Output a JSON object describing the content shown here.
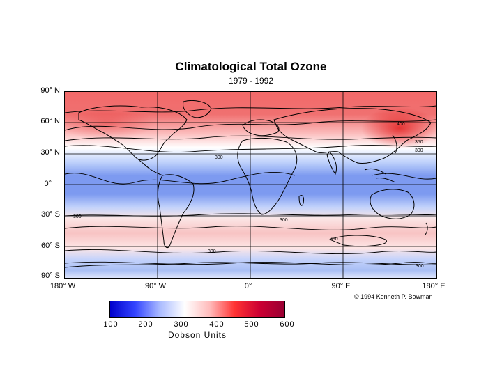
{
  "title": "Climatological Total Ozone",
  "subtitle": "1979 - 1992",
  "latitude_labels": [
    "90° N",
    "60° N",
    "30° N",
    "0°",
    "30° S",
    "60° S",
    "90° S"
  ],
  "longitude_labels": [
    "180° W",
    "90° W",
    "0°",
    "90° E",
    "180° E"
  ],
  "contour_labels": [
    "300",
    "300",
    "300",
    "350",
    "300",
    "350",
    "300",
    "300",
    "400"
  ],
  "credit": "© 1994 Kenneth P. Bowman",
  "colorbar": {
    "ticks": [
      "100",
      "200",
      "300",
      "400",
      "500",
      "600"
    ],
    "label": "Dobson Units",
    "colors": [
      "#0000cc",
      "#3344ff",
      "#aabbff",
      "#ffffff",
      "#ffbbbb",
      "#ff3333",
      "#cc0033",
      "#990033"
    ]
  },
  "colors": {
    "high_ozone": "#ee3333",
    "mid_ozone": "#ffffff",
    "low_ozone": "#5577ee"
  }
}
